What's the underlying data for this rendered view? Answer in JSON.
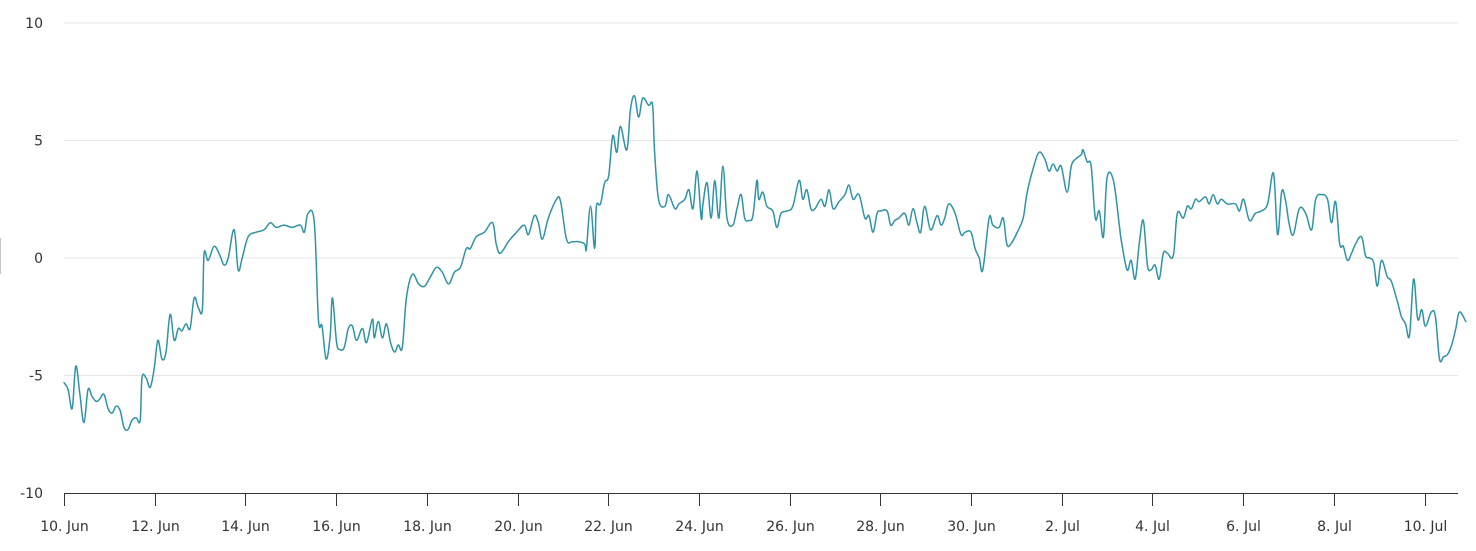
{
  "chart_data": {
    "type": "line",
    "title": "",
    "xlabel": "",
    "ylabel": "",
    "ylim": [
      -10,
      10
    ],
    "yticks": [
      10,
      5,
      0,
      -5,
      -10
    ],
    "xticks": [
      "10. Jun",
      "12. Jun",
      "14. Jun",
      "16. Jun",
      "18. Jun",
      "20. Jun",
      "22. Jun",
      "24. Jun",
      "26. Jun",
      "28. Jun",
      "30. Jun",
      "2. Jul",
      "4. Jul",
      "6. Jul",
      "8. Jul",
      "10. Jul"
    ],
    "x_start": "10. Jun",
    "x_end_day_offset": 30.7,
    "grid": true,
    "legend": null,
    "series": [
      {
        "name": "Series 1",
        "color": "#2f93a3",
        "points_day_offset_value": [
          [
            0.0,
            -5.3
          ],
          [
            0.09,
            -5.6
          ],
          [
            0.18,
            -6.4
          ],
          [
            0.26,
            -4.6
          ],
          [
            0.35,
            -5.8
          ],
          [
            0.44,
            -7.0
          ],
          [
            0.53,
            -5.6
          ],
          [
            0.62,
            -5.9
          ],
          [
            0.71,
            -6.1
          ],
          [
            0.79,
            -6.0
          ],
          [
            0.88,
            -5.8
          ],
          [
            0.97,
            -6.4
          ],
          [
            1.06,
            -6.6
          ],
          [
            1.15,
            -6.3
          ],
          [
            1.24,
            -6.5
          ],
          [
            1.32,
            -7.2
          ],
          [
            1.41,
            -7.3
          ],
          [
            1.5,
            -6.9
          ],
          [
            1.59,
            -6.8
          ],
          [
            1.68,
            -6.9
          ],
          [
            1.72,
            -5.1
          ],
          [
            1.81,
            -5.1
          ],
          [
            1.9,
            -5.5
          ],
          [
            1.99,
            -4.7
          ],
          [
            2.07,
            -3.5
          ],
          [
            2.16,
            -4.3
          ],
          [
            2.25,
            -4.0
          ],
          [
            2.34,
            -2.4
          ],
          [
            2.43,
            -3.5
          ],
          [
            2.52,
            -3.0
          ],
          [
            2.6,
            -3.1
          ],
          [
            2.69,
            -2.8
          ],
          [
            2.78,
            -3.0
          ],
          [
            2.87,
            -1.7
          ],
          [
            2.96,
            -2.1
          ],
          [
            3.05,
            -2.2
          ],
          [
            3.09,
            0.2
          ],
          [
            3.18,
            -0.1
          ],
          [
            3.31,
            0.5
          ],
          [
            3.44,
            0.1
          ],
          [
            3.53,
            -0.3
          ],
          [
            3.62,
            -0.0
          ],
          [
            3.75,
            1.2
          ],
          [
            3.84,
            -0.5
          ],
          [
            3.93,
            0.0
          ],
          [
            4.06,
            0.9
          ],
          [
            4.24,
            1.1
          ],
          [
            4.41,
            1.2
          ],
          [
            4.55,
            1.5
          ],
          [
            4.68,
            1.3
          ],
          [
            4.85,
            1.4
          ],
          [
            5.03,
            1.3
          ],
          [
            5.21,
            1.4
          ],
          [
            5.3,
            1.1
          ],
          [
            5.38,
            1.9
          ],
          [
            5.52,
            1.5
          ],
          [
            5.61,
            -2.6
          ],
          [
            5.69,
            -2.9
          ],
          [
            5.78,
            -4.3
          ],
          [
            5.87,
            -3.3
          ],
          [
            5.92,
            -1.7
          ],
          [
            6.01,
            -3.6
          ],
          [
            6.09,
            -3.9
          ],
          [
            6.18,
            -3.8
          ],
          [
            6.27,
            -3.0
          ],
          [
            6.36,
            -2.9
          ],
          [
            6.45,
            -3.5
          ],
          [
            6.58,
            -3.0
          ],
          [
            6.67,
            -3.6
          ],
          [
            6.8,
            -2.6
          ],
          [
            6.84,
            -3.4
          ],
          [
            6.93,
            -2.7
          ],
          [
            7.02,
            -3.4
          ],
          [
            7.11,
            -2.8
          ],
          [
            7.2,
            -3.6
          ],
          [
            7.29,
            -4.0
          ],
          [
            7.37,
            -3.7
          ],
          [
            7.46,
            -3.8
          ],
          [
            7.55,
            -1.7
          ],
          [
            7.68,
            -0.7
          ],
          [
            7.82,
            -1.1
          ],
          [
            7.95,
            -1.2
          ],
          [
            8.08,
            -0.8
          ],
          [
            8.21,
            -0.4
          ],
          [
            8.34,
            -0.6
          ],
          [
            8.48,
            -1.1
          ],
          [
            8.61,
            -0.6
          ],
          [
            8.74,
            -0.4
          ],
          [
            8.87,
            0.4
          ],
          [
            8.96,
            0.4
          ],
          [
            9.09,
            0.9
          ],
          [
            9.27,
            1.1
          ],
          [
            9.45,
            1.5
          ],
          [
            9.53,
            0.6
          ],
          [
            9.62,
            0.2
          ],
          [
            9.8,
            0.7
          ],
          [
            9.98,
            1.1
          ],
          [
            10.15,
            1.4
          ],
          [
            10.24,
            1.0
          ],
          [
            10.37,
            1.8
          ],
          [
            10.46,
            1.5
          ],
          [
            10.55,
            0.8
          ],
          [
            10.68,
            1.7
          ],
          [
            10.86,
            2.5
          ],
          [
            10.95,
            2.4
          ],
          [
            11.08,
            0.8
          ],
          [
            11.21,
            0.7
          ],
          [
            11.34,
            0.7
          ],
          [
            11.48,
            0.6
          ],
          [
            11.52,
            0.4
          ],
          [
            11.61,
            2.2
          ],
          [
            11.7,
            0.4
          ],
          [
            11.74,
            2.2
          ],
          [
            11.83,
            2.3
          ],
          [
            11.92,
            3.2
          ],
          [
            12.01,
            3.5
          ],
          [
            12.1,
            5.2
          ],
          [
            12.19,
            4.5
          ],
          [
            12.27,
            5.6
          ],
          [
            12.41,
            4.6
          ],
          [
            12.49,
            6.3
          ],
          [
            12.58,
            6.9
          ],
          [
            12.67,
            6.0
          ],
          [
            12.76,
            6.8
          ],
          [
            12.89,
            6.5
          ],
          [
            12.98,
            6.5
          ],
          [
            13.02,
            4.6
          ],
          [
            13.11,
            2.5
          ],
          [
            13.25,
            2.2
          ],
          [
            13.33,
            2.7
          ],
          [
            13.47,
            2.1
          ],
          [
            13.56,
            2.3
          ],
          [
            13.69,
            2.5
          ],
          [
            13.78,
            2.9
          ],
          [
            13.87,
            2.1
          ],
          [
            13.96,
            3.7
          ],
          [
            14.05,
            1.7
          ],
          [
            14.09,
            2.3
          ],
          [
            14.18,
            3.2
          ],
          [
            14.27,
            1.7
          ],
          [
            14.35,
            3.3
          ],
          [
            14.44,
            1.7
          ],
          [
            14.53,
            3.9
          ],
          [
            14.62,
            1.7
          ],
          [
            14.75,
            1.4
          ],
          [
            14.84,
            2.1
          ],
          [
            14.93,
            2.7
          ],
          [
            15.01,
            1.7
          ],
          [
            15.1,
            1.6
          ],
          [
            15.19,
            1.8
          ],
          [
            15.28,
            3.3
          ],
          [
            15.32,
            2.5
          ],
          [
            15.41,
            2.8
          ],
          [
            15.5,
            2.2
          ],
          [
            15.63,
            2.0
          ],
          [
            15.72,
            1.3
          ],
          [
            15.81,
            1.9
          ],
          [
            15.94,
            2.0
          ],
          [
            16.07,
            2.2
          ],
          [
            16.21,
            3.3
          ],
          [
            16.29,
            2.5
          ],
          [
            16.38,
            2.9
          ],
          [
            16.47,
            2.1
          ],
          [
            16.56,
            2.1
          ],
          [
            16.69,
            2.5
          ],
          [
            16.78,
            2.2
          ],
          [
            16.87,
            2.9
          ],
          [
            16.96,
            2.1
          ],
          [
            17.09,
            2.4
          ],
          [
            17.22,
            2.7
          ],
          [
            17.31,
            3.1
          ],
          [
            17.4,
            2.5
          ],
          [
            17.53,
            2.7
          ],
          [
            17.66,
            1.7
          ],
          [
            17.75,
            1.8
          ],
          [
            17.84,
            1.1
          ],
          [
            17.93,
            1.9
          ],
          [
            18.01,
            2.0
          ],
          [
            18.15,
            2.0
          ],
          [
            18.23,
            1.4
          ],
          [
            18.32,
            1.6
          ],
          [
            18.41,
            1.7
          ],
          [
            18.54,
            1.9
          ],
          [
            18.63,
            1.4
          ],
          [
            18.72,
            2.1
          ],
          [
            18.81,
            1.5
          ],
          [
            18.89,
            1.1
          ],
          [
            18.98,
            2.2
          ],
          [
            19.11,
            1.2
          ],
          [
            19.25,
            1.8
          ],
          [
            19.34,
            1.4
          ],
          [
            19.42,
            1.7
          ],
          [
            19.51,
            2.3
          ],
          [
            19.65,
            1.9
          ],
          [
            19.78,
            1.0
          ],
          [
            19.87,
            1.1
          ],
          [
            20.0,
            1.1
          ],
          [
            20.09,
            0.4
          ],
          [
            20.18,
            0.0
          ],
          [
            20.26,
            -0.5
          ],
          [
            20.4,
            1.7
          ],
          [
            20.48,
            1.4
          ],
          [
            20.62,
            1.3
          ],
          [
            20.71,
            1.7
          ],
          [
            20.79,
            0.6
          ],
          [
            20.88,
            0.6
          ],
          [
            21.02,
            1.1
          ],
          [
            21.15,
            1.7
          ],
          [
            21.24,
            2.8
          ],
          [
            21.37,
            3.8
          ],
          [
            21.5,
            4.5
          ],
          [
            21.63,
            4.2
          ],
          [
            21.72,
            3.7
          ],
          [
            21.81,
            4.0
          ],
          [
            21.9,
            3.7
          ],
          [
            21.99,
            3.9
          ],
          [
            22.12,
            2.8
          ],
          [
            22.21,
            3.9
          ],
          [
            22.3,
            4.2
          ],
          [
            22.43,
            4.4
          ],
          [
            22.47,
            4.6
          ],
          [
            22.56,
            4.1
          ],
          [
            22.65,
            3.9
          ],
          [
            22.74,
            1.7
          ],
          [
            22.83,
            2.0
          ],
          [
            22.92,
            0.9
          ],
          [
            23.0,
            3.4
          ],
          [
            23.14,
            3.3
          ],
          [
            23.27,
            1.4
          ],
          [
            23.31,
            0.8
          ],
          [
            23.44,
            -0.5
          ],
          [
            23.53,
            -0.1
          ],
          [
            23.62,
            -0.9
          ],
          [
            23.71,
            0.6
          ],
          [
            23.8,
            1.6
          ],
          [
            23.89,
            -0.3
          ],
          [
            23.97,
            -0.5
          ],
          [
            24.06,
            -0.3
          ],
          [
            24.15,
            -0.9
          ],
          [
            24.24,
            0.2
          ],
          [
            24.33,
            0.2
          ],
          [
            24.46,
            0.1
          ],
          [
            24.55,
            1.9
          ],
          [
            24.68,
            1.7
          ],
          [
            24.77,
            2.2
          ],
          [
            24.86,
            2.1
          ],
          [
            24.95,
            2.5
          ],
          [
            25.03,
            2.4
          ],
          [
            25.17,
            2.6
          ],
          [
            25.25,
            2.3
          ],
          [
            25.34,
            2.7
          ],
          [
            25.43,
            2.3
          ],
          [
            25.52,
            2.5
          ],
          [
            25.65,
            2.3
          ],
          [
            25.83,
            2.3
          ],
          [
            25.92,
            2.0
          ],
          [
            26.01,
            2.5
          ],
          [
            26.14,
            1.6
          ],
          [
            26.27,
            1.9
          ],
          [
            26.4,
            2.0
          ],
          [
            26.54,
            2.3
          ],
          [
            26.67,
            3.6
          ],
          [
            26.76,
            1.0
          ],
          [
            26.85,
            2.8
          ],
          [
            26.93,
            2.5
          ],
          [
            27.02,
            1.4
          ],
          [
            27.11,
            1.0
          ],
          [
            27.24,
            2.1
          ],
          [
            27.38,
            1.9
          ],
          [
            27.51,
            1.2
          ],
          [
            27.6,
            2.5
          ],
          [
            27.73,
            2.7
          ],
          [
            27.86,
            2.5
          ],
          [
            27.95,
            1.5
          ],
          [
            28.04,
            2.4
          ],
          [
            28.13,
            0.6
          ],
          [
            28.21,
            0.5
          ],
          [
            28.3,
            -0.1
          ],
          [
            28.39,
            0.2
          ],
          [
            28.48,
            0.6
          ],
          [
            28.61,
            0.9
          ],
          [
            28.7,
            0.1
          ],
          [
            28.79,
            -0.0
          ],
          [
            28.88,
            -0.2
          ],
          [
            28.96,
            -1.2
          ],
          [
            29.05,
            -0.1
          ],
          [
            29.18,
            -0.8
          ],
          [
            29.27,
            -1.0
          ],
          [
            29.41,
            -1.9
          ],
          [
            29.49,
            -2.5
          ],
          [
            29.58,
            -2.8
          ],
          [
            29.67,
            -3.3
          ],
          [
            29.76,
            -0.9
          ],
          [
            29.85,
            -2.6
          ],
          [
            29.94,
            -2.2
          ],
          [
            30.02,
            -2.9
          ],
          [
            30.15,
            -2.3
          ],
          [
            30.24,
            -2.5
          ],
          [
            30.33,
            -4.3
          ],
          [
            30.42,
            -4.2
          ],
          [
            30.51,
            -4.1
          ],
          [
            30.6,
            -3.7
          ],
          [
            30.69,
            -3.0
          ],
          [
            30.77,
            -2.3
          ],
          [
            30.91,
            -2.7
          ]
        ]
      }
    ]
  },
  "axes": {
    "y_labels": [
      "10",
      "5",
      "0",
      "-5",
      "-10"
    ],
    "x_labels": [
      "10. Jun",
      "12. Jun",
      "14. Jun",
      "16. Jun",
      "18. Jun",
      "20. Jun",
      "22. Jun",
      "24. Jun",
      "26. Jun",
      "28. Jun",
      "30. Jun",
      "2. Jul",
      "4. Jul",
      "6. Jul",
      "8. Jul",
      "10. Jul"
    ]
  },
  "style": {
    "line_color": "#2f93a3",
    "grid_color": "#e6e6e6",
    "axis_color": "#333333",
    "label_color": "#333333"
  }
}
